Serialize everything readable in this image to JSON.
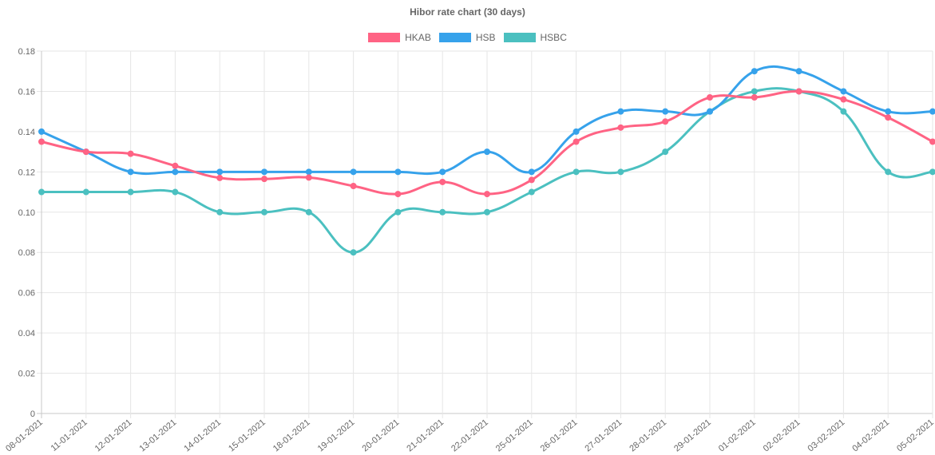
{
  "chart_data": {
    "type": "line",
    "title": "Hibor rate chart (30 days)",
    "categories": [
      "08-01-2021",
      "11-01-2021",
      "12-01-2021",
      "13-01-2021",
      "14-01-2021",
      "15-01-2021",
      "18-01-2021",
      "19-01-2021",
      "20-01-2021",
      "21-01-2021",
      "22-01-2021",
      "25-01-2021",
      "26-01-2021",
      "27-01-2021",
      "28-01-2021",
      "29-01-2021",
      "01-02-2021",
      "02-02-2021",
      "03-02-2021",
      "04-02-2021",
      "05-02-2021"
    ],
    "series": [
      {
        "name": "HKAB",
        "color": "#ff6384",
        "values": [
          0.135,
          0.13,
          0.129,
          0.123,
          0.117,
          0.1165,
          0.1172,
          0.113,
          0.109,
          0.115,
          0.109,
          0.116,
          0.135,
          0.142,
          0.145,
          0.157,
          0.157,
          0.16,
          0.156,
          0.147,
          0.135
        ]
      },
      {
        "name": "HSB",
        "color": "#36a2eb",
        "values": [
          0.14,
          0.13,
          0.12,
          0.12,
          0.12,
          0.12,
          0.12,
          0.12,
          0.12,
          0.12,
          0.13,
          0.12,
          0.14,
          0.15,
          0.15,
          0.15,
          0.17,
          0.17,
          0.16,
          0.15,
          0.15
        ]
      },
      {
        "name": "HSBC",
        "color": "#4bc0c0",
        "values": [
          0.11,
          0.11,
          0.11,
          0.11,
          0.1,
          0.1,
          0.1,
          0.08,
          0.1,
          0.1,
          0.1,
          0.11,
          0.12,
          0.12,
          0.13,
          0.15,
          0.16,
          0.16,
          0.15,
          0.12,
          0.12
        ]
      }
    ],
    "ylim": [
      0,
      0.18
    ],
    "yticks": [
      "0",
      "0.02",
      "0.04",
      "0.06",
      "0.08",
      "0.10",
      "0.12",
      "0.14",
      "0.16",
      "0.18"
    ],
    "grid": true,
    "legend": "top"
  }
}
